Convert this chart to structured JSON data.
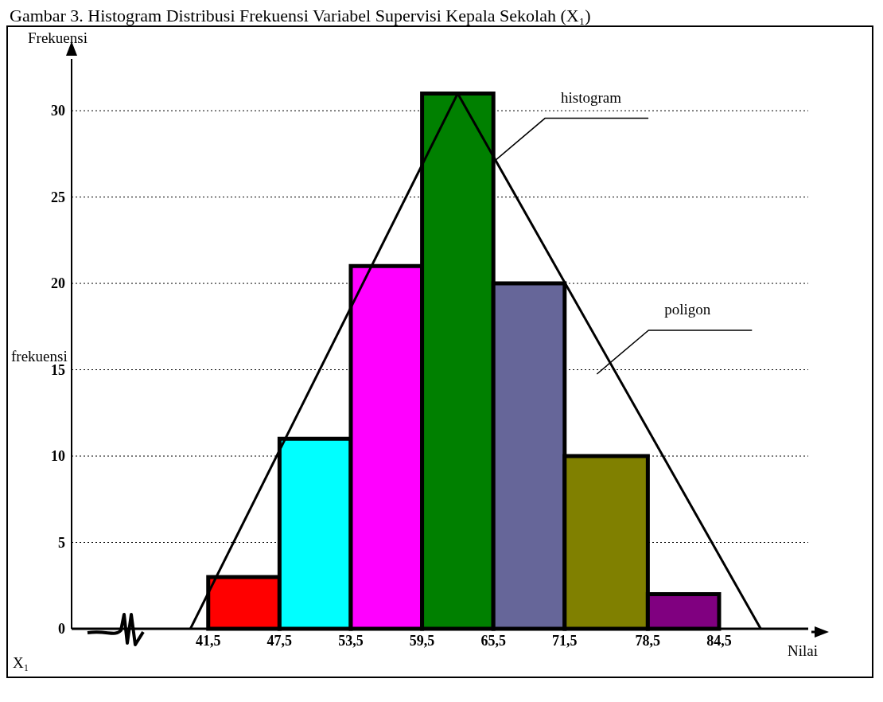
{
  "chart_data": {
    "type": "histogram",
    "title": "Gambar 3. Histogram Distribusi Frekuensi Variabel Supervisi Kepala Sekolah (X₁)",
    "xlabel": "Nilai",
    "ylabel": "frekuensi",
    "bins": [
      41.5,
      47.5,
      53.5,
      59.5,
      65.5,
      71.5,
      78.5,
      84.5
    ],
    "values": [
      3,
      11,
      21,
      31,
      20,
      10,
      2
    ],
    "colors": [
      "#ff0000",
      "#00ffff",
      "#ff00ff",
      "#008000",
      "#666699",
      "#808000",
      "#800080"
    ],
    "series": [
      {
        "type": "line",
        "color": "#000000",
        "x": [
          40,
          62.5,
          88
        ],
        "values": [
          0,
          31,
          0
        ]
      }
    ],
    "xlim": [
      30,
      92
    ],
    "xticks": [
      {
        "value": 41.5,
        "label": "41,5"
      },
      {
        "value": 47.5,
        "label": "47,5"
      },
      {
        "value": 53.5,
        "label": "53,5"
      },
      {
        "value": 59.5,
        "label": "59,5"
      },
      {
        "value": 65.5,
        "label": "65,5"
      },
      {
        "value": 71.5,
        "label": "71,5"
      },
      {
        "value": 78.5,
        "label": "78,5"
      },
      {
        "value": 84.5,
        "label": "84,5"
      }
    ],
    "ylim": [
      0,
      33
    ],
    "yticks": [
      0,
      5,
      10,
      15,
      20,
      25,
      30
    ],
    "grid": "y",
    "annotations": [
      "Frekuensi",
      "X₁",
      "histogram",
      "poligon"
    ]
  }
}
